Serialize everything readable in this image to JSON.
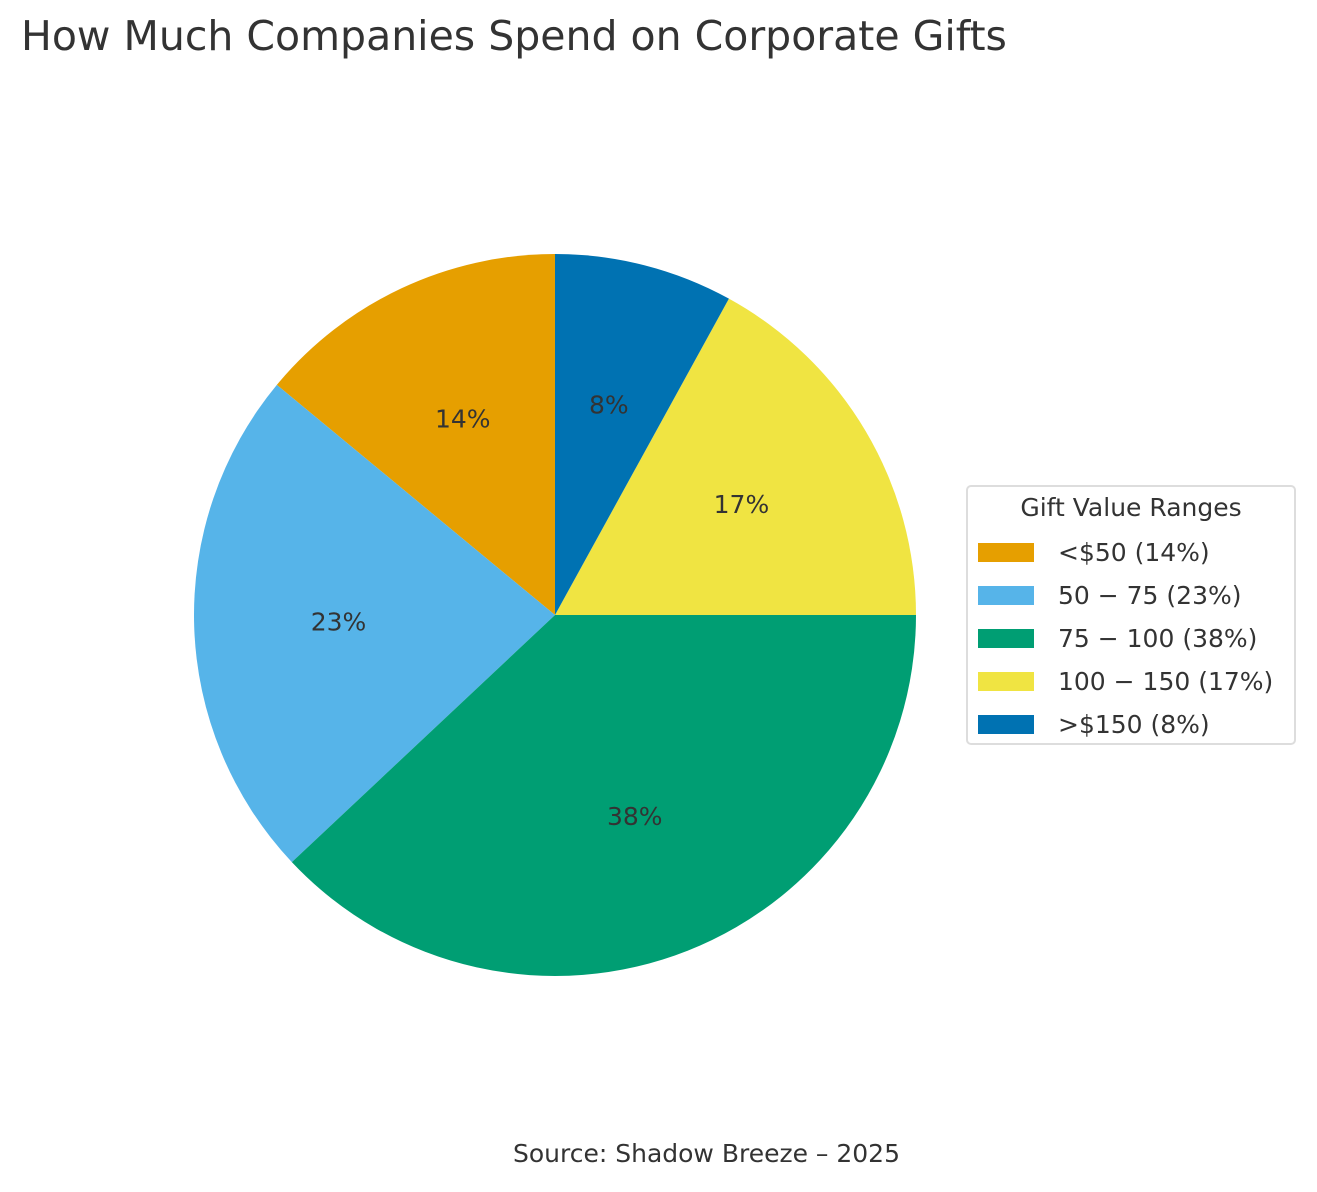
{
  "chart_data": {
    "type": "pie",
    "title": "How Much Companies Spend on Corporate Gifts",
    "source": "Source: Shadow Breeze – 2025",
    "start_angle_deg": 90,
    "direction": "counterclockwise",
    "slices": [
      {
        "label": "<$50 (14%)",
        "value": 14,
        "pct_label": "14%",
        "color": "#E69F00"
      },
      {
        "label": "50 − 75 (23%)",
        "value": 23,
        "pct_label": "23%",
        "color": "#56B4E9"
      },
      {
        "label": "75 − 100 (38%)",
        "value": 38,
        "pct_label": "38%",
        "color": "#009E73"
      },
      {
        "label": "100 − 150 (17%)",
        "value": 17,
        "pct_label": "17%",
        "color": "#F0E442"
      },
      {
        "label": ">$150 (8%)",
        "value": 8,
        "pct_label": "8%",
        "color": "#0072B2"
      }
    ],
    "legend": {
      "title": "Gift Value Ranges",
      "placement": "right"
    }
  }
}
